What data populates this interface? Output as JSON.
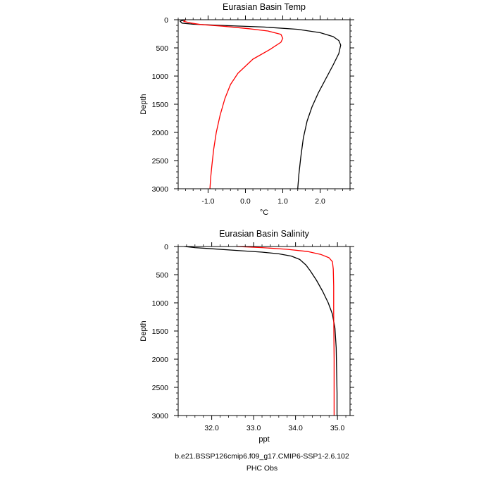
{
  "chart_data": [
    {
      "type": "line",
      "title": "Eurasian Basin Temp",
      "xlabel": "°C",
      "ylabel": "Depth",
      "xlim": [
        -1.8,
        2.8
      ],
      "ylim": [
        3000,
        0
      ],
      "y_inverted": true,
      "x_ticks": [
        -1.0,
        0.0,
        1.0,
        2.0
      ],
      "x_tick_labels": [
        "-1.0",
        "0.0",
        "1.0",
        "2.0"
      ],
      "y_ticks": [
        0,
        500,
        1000,
        1500,
        2000,
        2500,
        3000
      ],
      "y_tick_labels": [
        "0",
        "500",
        "1000",
        "1500",
        "2000",
        "2500",
        "3000"
      ],
      "grid": false,
      "series": [
        {
          "name": "b.e21.BSSP126cmip6.f09_g17.CMIP6-SSP1-2.6.102",
          "color": "#000000",
          "points": [
            [
              -1.6,
              0
            ],
            [
              -1.75,
              25
            ],
            [
              -1.7,
              60
            ],
            [
              -1.4,
              80
            ],
            [
              -0.5,
              105
            ],
            [
              0.5,
              130
            ],
            [
              1.4,
              170
            ],
            [
              2.0,
              230
            ],
            [
              2.35,
              300
            ],
            [
              2.5,
              370
            ],
            [
              2.55,
              450
            ],
            [
              2.5,
              600
            ],
            [
              2.35,
              800
            ],
            [
              2.15,
              1050
            ],
            [
              1.95,
              1300
            ],
            [
              1.78,
              1550
            ],
            [
              1.65,
              1800
            ],
            [
              1.55,
              2100
            ],
            [
              1.48,
              2450
            ],
            [
              1.43,
              2750
            ],
            [
              1.4,
              3000
            ]
          ]
        },
        {
          "name": "PHC Obs",
          "color": "#ff0000",
          "points": [
            [
              -1.6,
              0
            ],
            [
              -1.65,
              30
            ],
            [
              -1.45,
              60
            ],
            [
              -1.2,
              85
            ],
            [
              -0.6,
              115
            ],
            [
              0.1,
              160
            ],
            [
              0.6,
              200
            ],
            [
              0.95,
              260
            ],
            [
              1.0,
              330
            ],
            [
              0.95,
              400
            ],
            [
              0.65,
              530
            ],
            [
              0.2,
              700
            ],
            [
              -0.2,
              950
            ],
            [
              -0.4,
              1150
            ],
            [
              -0.55,
              1400
            ],
            [
              -0.68,
              1700
            ],
            [
              -0.78,
              2000
            ],
            [
              -0.85,
              2300
            ],
            [
              -0.9,
              2600
            ],
            [
              -0.93,
              2800
            ],
            [
              -0.95,
              3000
            ]
          ]
        }
      ]
    },
    {
      "type": "line",
      "title": "Eurasian Basin Salinity",
      "xlabel": "ppt",
      "ylabel": "Depth",
      "xlim": [
        31.2,
        35.3
      ],
      "ylim": [
        3000,
        0
      ],
      "y_inverted": true,
      "x_ticks": [
        32.0,
        33.0,
        34.0,
        35.0
      ],
      "x_tick_labels": [
        "32.0",
        "33.0",
        "34.0",
        "35.0"
      ],
      "y_ticks": [
        0,
        500,
        1000,
        1500,
        2000,
        2500,
        3000
      ],
      "y_tick_labels": [
        "0",
        "500",
        "1000",
        "1500",
        "2000",
        "2500",
        "3000"
      ],
      "grid": false,
      "series": [
        {
          "name": "b.e21.BSSP126cmip6.f09_g17.CMIP6-SSP1-2.6.102",
          "color": "#000000",
          "points": [
            [
              31.35,
              0
            ],
            [
              31.6,
              20
            ],
            [
              32.0,
              40
            ],
            [
              32.6,
              70
            ],
            [
              33.2,
              100
            ],
            [
              33.6,
              130
            ],
            [
              33.9,
              170
            ],
            [
              34.1,
              230
            ],
            [
              34.25,
              330
            ],
            [
              34.35,
              430
            ],
            [
              34.5,
              600
            ],
            [
              34.65,
              800
            ],
            [
              34.78,
              1000
            ],
            [
              34.88,
              1200
            ],
            [
              34.94,
              1450
            ],
            [
              34.97,
              1800
            ],
            [
              34.98,
              2200
            ],
            [
              34.99,
              2600
            ],
            [
              34.99,
              3000
            ]
          ]
        },
        {
          "name": "PHC Obs",
          "color": "#ff0000",
          "points": [
            [
              32.6,
              0
            ],
            [
              33.2,
              20
            ],
            [
              33.8,
              50
            ],
            [
              34.3,
              90
            ],
            [
              34.6,
              140
            ],
            [
              34.8,
              200
            ],
            [
              34.88,
              270
            ],
            [
              34.9,
              400
            ],
            [
              34.91,
              700
            ],
            [
              34.91,
              1200
            ],
            [
              34.92,
              2000
            ],
            [
              34.92,
              3000
            ]
          ]
        }
      ]
    }
  ],
  "legend": {
    "model": "b.e21.BSSP126cmip6.f09_g17.CMIP6-SSP1-2.6.102",
    "obs": "PHC Obs",
    "model_color": "#000000",
    "obs_color": "#ff0000"
  }
}
